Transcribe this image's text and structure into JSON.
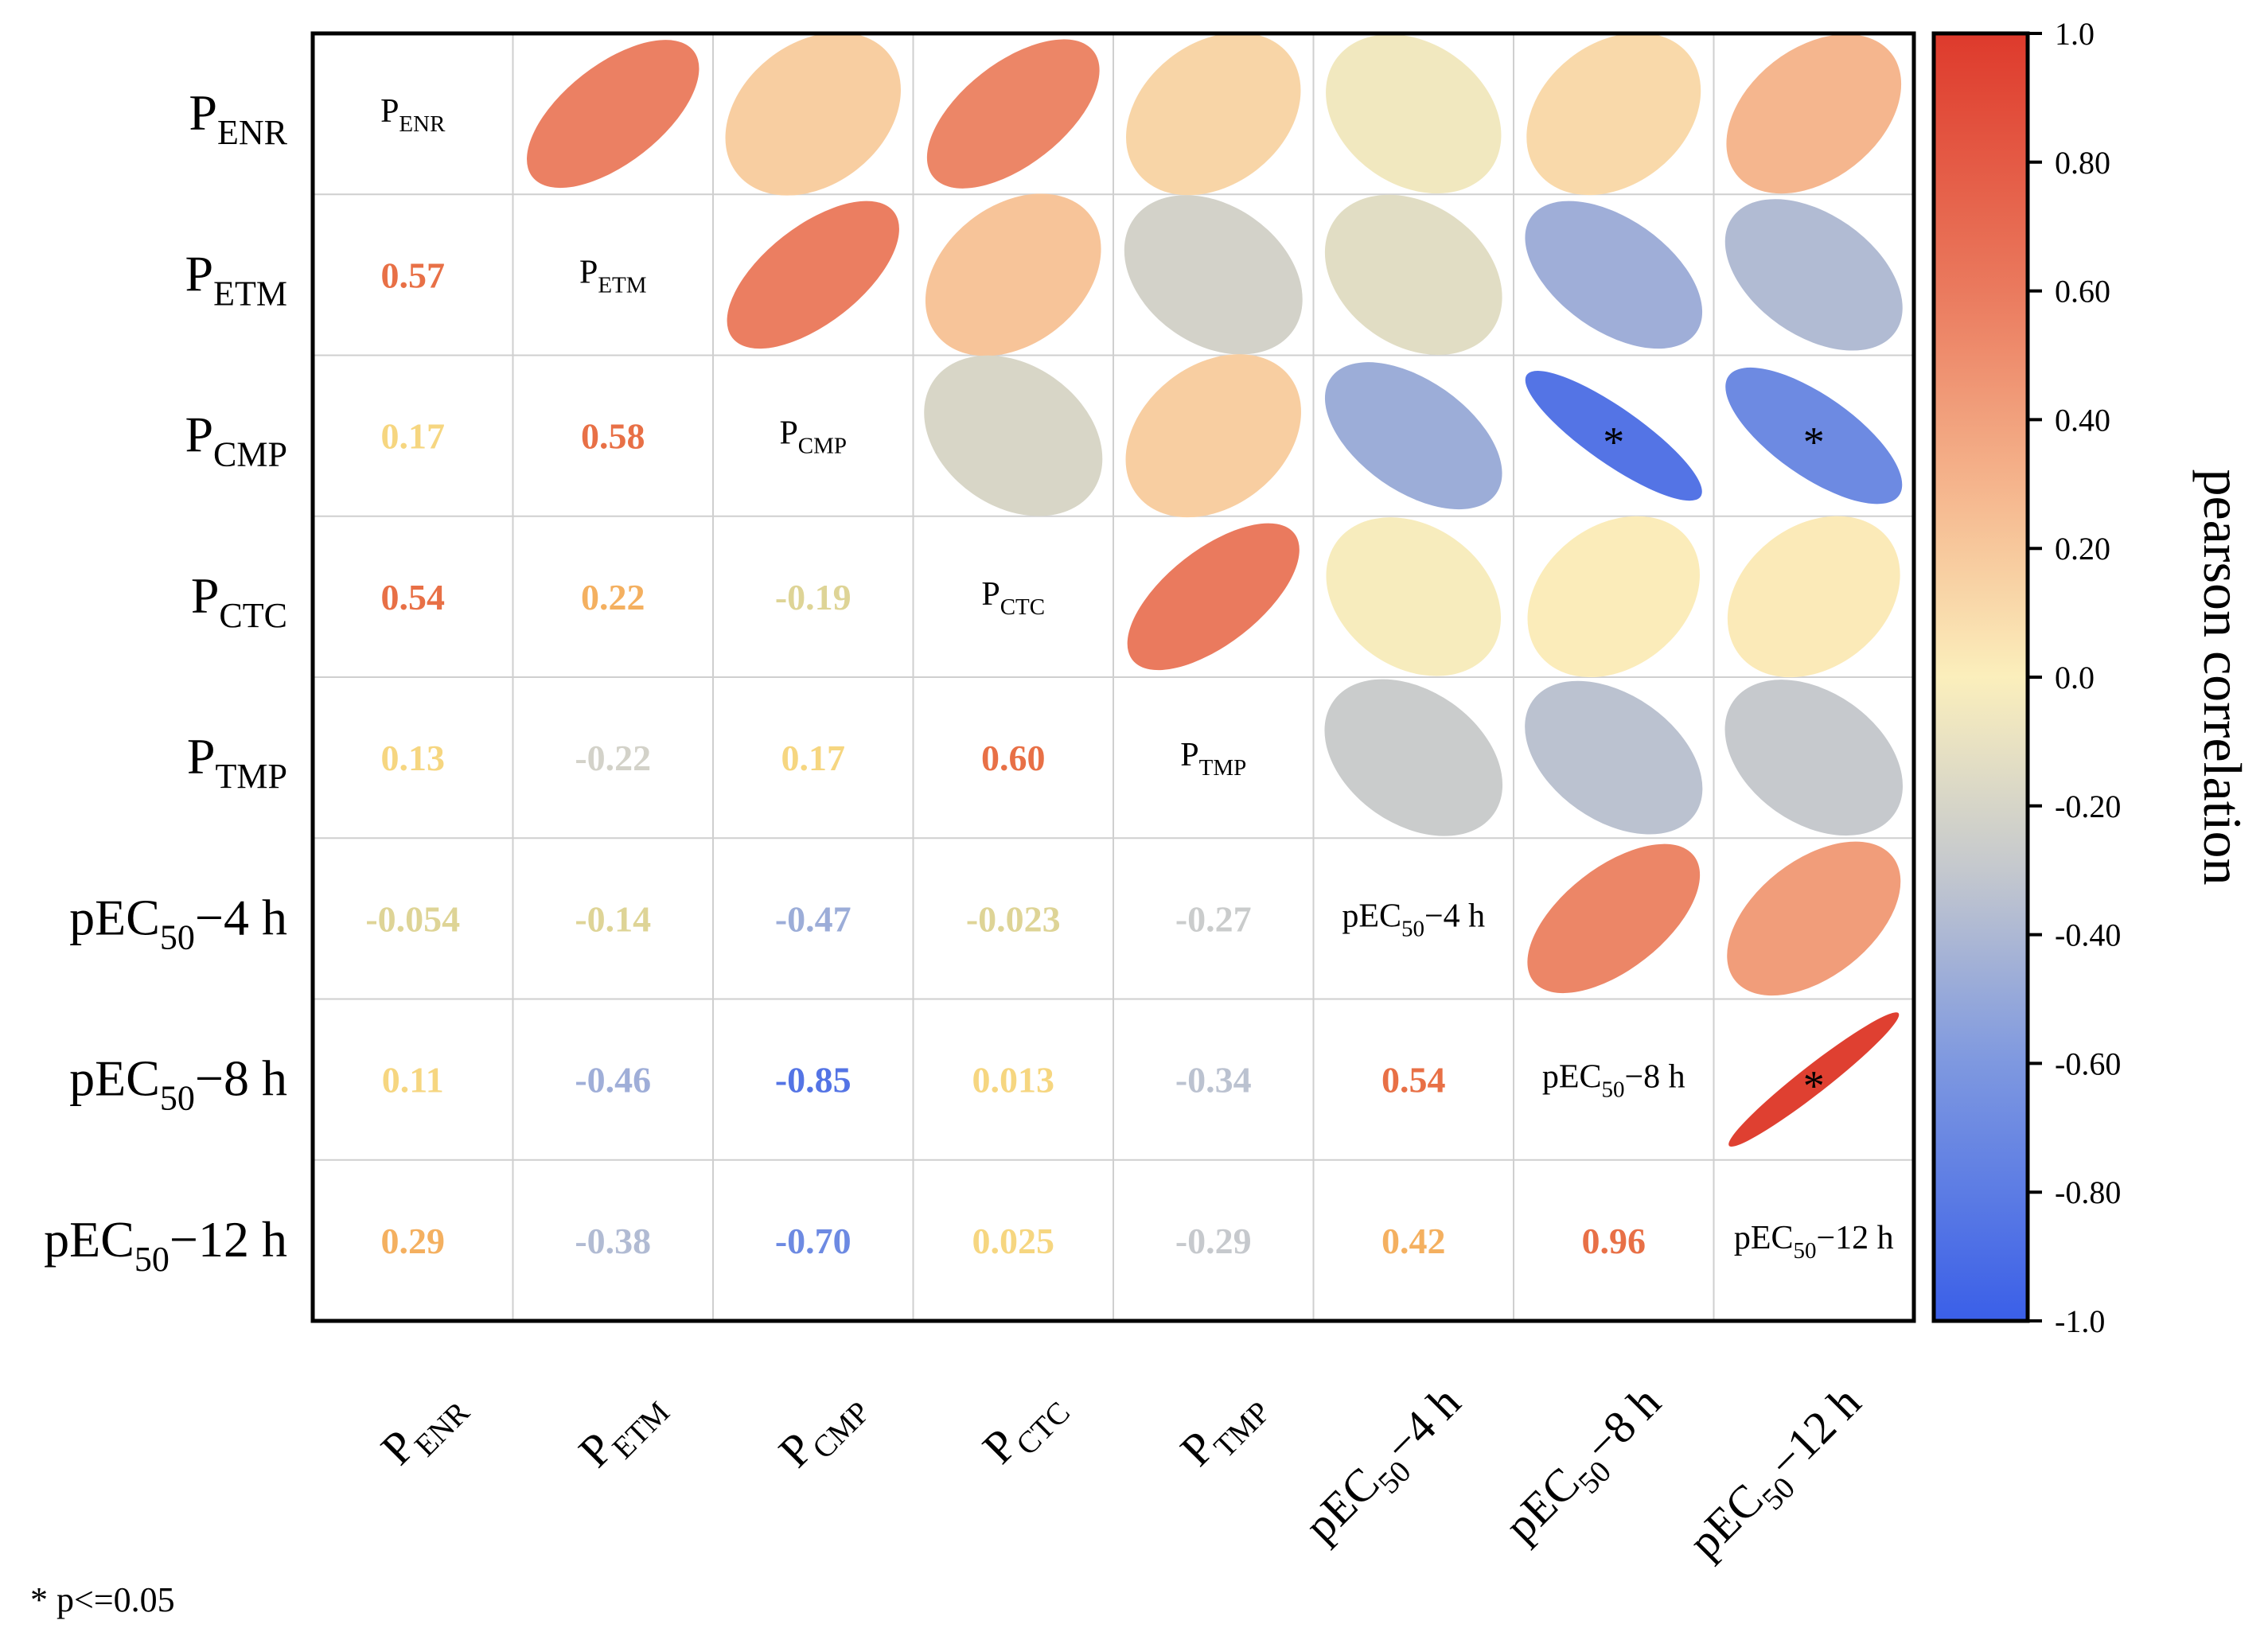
{
  "chart_data": {
    "type": "correlation-matrix",
    "variables": [
      {
        "base": "P",
        "sub": "ENR",
        "suffix": ""
      },
      {
        "base": "P",
        "sub": "ETM",
        "suffix": ""
      },
      {
        "base": "P",
        "sub": "CMP",
        "suffix": ""
      },
      {
        "base": "P",
        "sub": "CTC",
        "suffix": ""
      },
      {
        "base": "P",
        "sub": "TMP",
        "suffix": ""
      },
      {
        "base": "pEC",
        "sub": "50",
        "suffix": "−4 h"
      },
      {
        "base": "pEC",
        "sub": "50",
        "suffix": "−8 h"
      },
      {
        "base": "pEC",
        "sub": "50",
        "suffix": "−12 h"
      }
    ],
    "matrix": [
      [
        1,
        0.57,
        0.17,
        0.54,
        0.13,
        -0.054,
        0.11,
        0.29
      ],
      [
        0.57,
        1,
        0.58,
        0.22,
        -0.22,
        -0.14,
        -0.46,
        -0.38
      ],
      [
        0.17,
        0.58,
        1,
        -0.19,
        0.17,
        -0.47,
        -0.85,
        -0.7
      ],
      [
        0.54,
        0.22,
        -0.19,
        1,
        0.6,
        -0.023,
        0.013,
        0.025
      ],
      [
        0.13,
        -0.22,
        0.17,
        0.6,
        1,
        -0.27,
        -0.34,
        -0.29
      ],
      [
        -0.054,
        -0.14,
        -0.47,
        -0.023,
        -0.27,
        1,
        0.54,
        0.42
      ],
      [
        0.11,
        -0.46,
        -0.85,
        0.013,
        -0.34,
        0.54,
        1,
        0.96
      ],
      [
        0.29,
        -0.38,
        -0.7,
        0.025,
        -0.29,
        0.42,
        0.96,
        1
      ]
    ],
    "value_labels": [
      [
        "",
        "",
        "",
        "",
        "",
        "",
        "",
        ""
      ],
      [
        "0.57",
        "",
        "",
        "",
        "",
        "",
        "",
        ""
      ],
      [
        "0.17",
        "0.58",
        "",
        "",
        "",
        "",
        "",
        ""
      ],
      [
        "0.54",
        "0.22",
        "-0.19",
        "",
        "",
        "",
        "",
        ""
      ],
      [
        "0.13",
        "-0.22",
        "0.17",
        "0.60",
        "",
        "",
        "",
        ""
      ],
      [
        "-0.054",
        "-0.14",
        "-0.47",
        "-0.023",
        "-0.27",
        "",
        "",
        ""
      ],
      [
        "0.11",
        "-0.46",
        "-0.85",
        "0.013",
        "-0.34",
        "0.54",
        "",
        ""
      ],
      [
        "0.29",
        "-0.38",
        "-0.70",
        "0.025",
        "-0.29",
        "0.42",
        "0.96",
        ""
      ]
    ],
    "significant_pairs": [
      [
        2,
        6
      ],
      [
        2,
        7
      ],
      [
        6,
        7
      ]
    ],
    "significance_marker": "*",
    "colorbar": {
      "label": "pearson correlation",
      "range": [
        -1.0,
        1.0
      ],
      "ticks": [
        "1.0",
        "0.80",
        "0.60",
        "0.40",
        "0.20",
        "0.0",
        "-0.20",
        "-0.40",
        "-0.60",
        "-0.80",
        "-1.0"
      ],
      "tick_values": [
        1.0,
        0.8,
        0.6,
        0.4,
        0.2,
        0.0,
        -0.2,
        -0.4,
        -0.6,
        -0.8,
        -1.0
      ],
      "colors": {
        "neg": "#3a5fe8",
        "mid": "#fbefbc",
        "pos": "#de3a2c"
      }
    },
    "upper": "ellipse",
    "lower": "number",
    "diagonal": "label"
  },
  "footnote": "* p<=0.05"
}
